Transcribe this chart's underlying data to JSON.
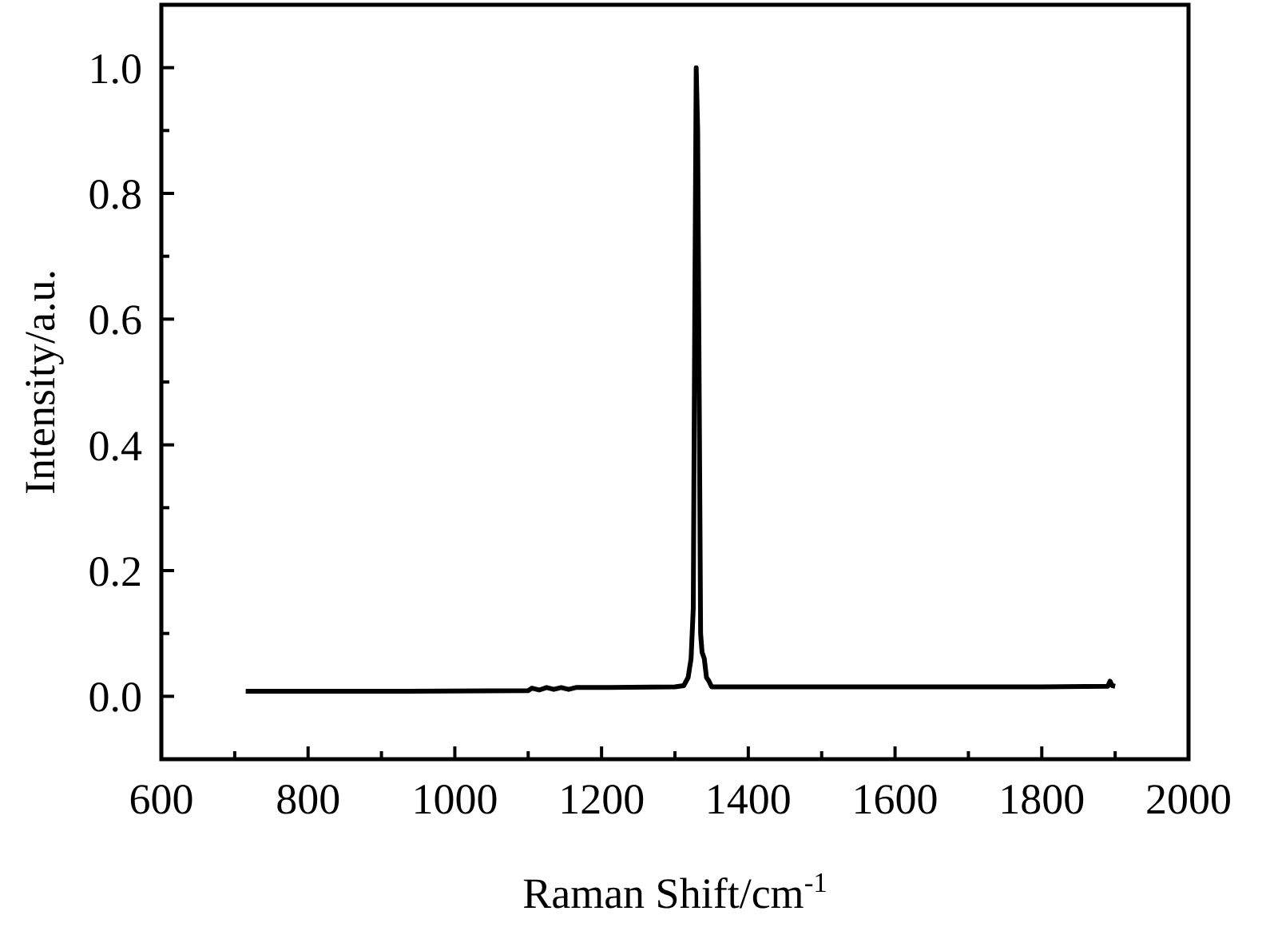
{
  "chart_data": {
    "type": "line",
    "xlabel": "Raman Shift/cm$^{-1}$",
    "ylabel": "Intensity/a.u.",
    "xlim": [
      600,
      2000
    ],
    "ylim": [
      -0.1,
      1.1
    ],
    "xticks": [
      600,
      800,
      1000,
      1200,
      1400,
      1600,
      1800,
      2000
    ],
    "yticks": [
      {
        "value": 0,
        "label": "0.0"
      },
      {
        "value": 0.2,
        "label": "0.2"
      },
      {
        "value": 0.4,
        "label": "0.4"
      },
      {
        "value": 0.6,
        "label": "0.6"
      },
      {
        "value": 0.8,
        "label": "0.8"
      },
      {
        "value": 1,
        "label": "1.0"
      }
    ],
    "grid": false,
    "line_style": "solid",
    "series": [
      {
        "color": "#000000",
        "x": [
          715,
          900,
          1100,
          1105,
          1115,
          1125,
          1135,
          1145,
          1155,
          1165,
          1200,
          1300,
          1312,
          1318,
          1322,
          1325,
          1327,
          1329,
          1331,
          1333,
          1335,
          1337,
          1340,
          1343,
          1346,
          1350,
          1354,
          1400,
          1600,
          1800,
          1890,
          1893,
          1896,
          1900
        ],
        "values": [
          0.008,
          0.008,
          0.009,
          0.013,
          0.01,
          0.014,
          0.011,
          0.014,
          0.011,
          0.014,
          0.014,
          0.015,
          0.017,
          0.03,
          0.06,
          0.14,
          0.6,
          1.0,
          0.9,
          0.5,
          0.1,
          0.07,
          0.06,
          0.03,
          0.025,
          0.015,
          0.015,
          0.015,
          0.015,
          0.015,
          0.016,
          0.024,
          0.017,
          0.016
        ]
      }
    ]
  }
}
